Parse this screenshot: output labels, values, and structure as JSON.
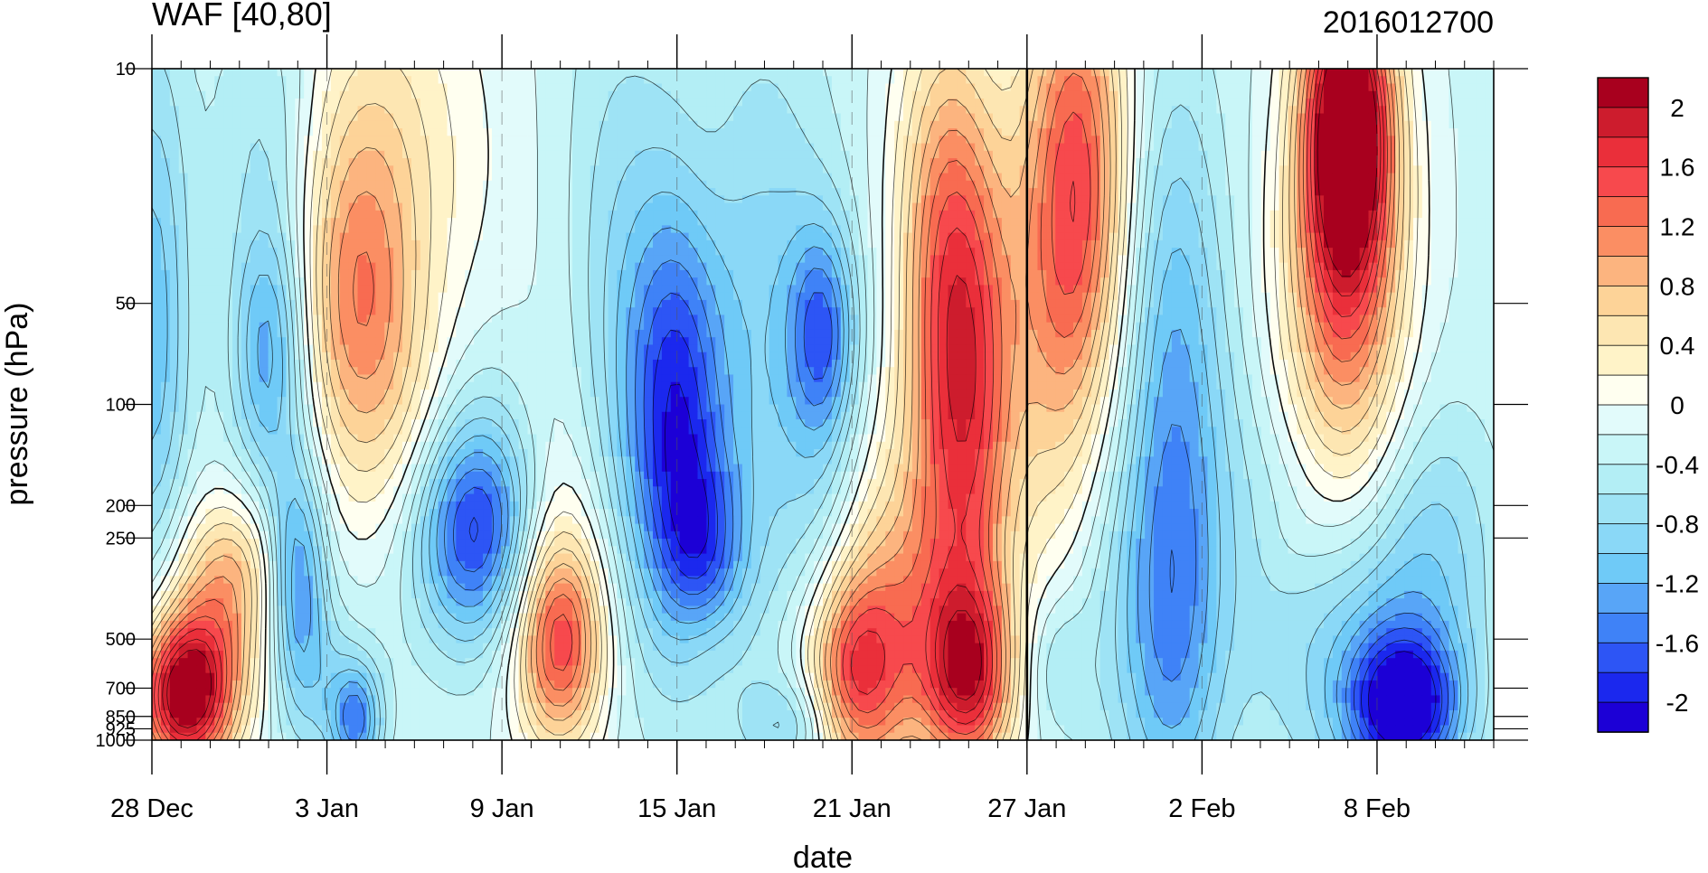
{
  "chart_data": {
    "type": "heatmap",
    "title": "WAF [40,80]",
    "title_right": "2016012700",
    "xlabel": "date",
    "ylabel": "pressure (hPa)",
    "x_tick_labels": [
      "28 Dec",
      "3 Jan",
      "9 Jan",
      "15 Jan",
      "21 Jan",
      "27 Jan",
      "2 Feb",
      "8 Feb"
    ],
    "x_tick_dates": [
      "2015-12-28",
      "2016-01-03",
      "2016-01-09",
      "2016-01-15",
      "2016-01-21",
      "2016-01-27",
      "2016-02-02",
      "2016-02-08"
    ],
    "x_range": [
      "2015-12-28",
      "2016-02-12"
    ],
    "y_scale": "log",
    "y_reversed": true,
    "y_range": [
      1000,
      10
    ],
    "y_tick_values": [
      10,
      50,
      100,
      200,
      250,
      500,
      700,
      850,
      925,
      1000
    ],
    "y_tick_labels": [
      "10",
      "50",
      "100",
      "200",
      "250",
      "500",
      "700",
      "850",
      "925",
      "1000"
    ],
    "marker_date": "2016-01-27",
    "colorbar": {
      "levels": [
        -2.2,
        -2.0,
        -1.8,
        -1.6,
        -1.4,
        -1.2,
        -1.0,
        -0.8,
        -0.6,
        -0.4,
        -0.2,
        0,
        0.2,
        0.4,
        0.6,
        0.8,
        1.0,
        1.2,
        1.4,
        1.6,
        1.8,
        2.0,
        2.2
      ],
      "colors": [
        "#1c00d6",
        "#1b28ee",
        "#2d55f5",
        "#3f82f7",
        "#58a5f7",
        "#6fcaf7",
        "#8ad8f7",
        "#9ee3f5",
        "#b3eef5",
        "#c9f6f8",
        "#e2fbfb",
        "#fffff0",
        "#fff3c8",
        "#fde6b2",
        "#fdd398",
        "#fcb47f",
        "#fb8e63",
        "#f86b51",
        "#f7494d",
        "#ea2f3a",
        "#cd1c2d",
        "#a8001e"
      ],
      "tick_labels": [
        "2",
        "1.6",
        "1.2",
        "0.8",
        "0.4",
        "0",
        "-0.4",
        "-0.8",
        "-1.2",
        "-1.6",
        "-2"
      ],
      "tick_values": [
        2,
        1.6,
        1.2,
        0.8,
        0.4,
        0,
        -0.4,
        -0.8,
        -1.2,
        -1.6,
        -2
      ]
    },
    "field_features": [
      {
        "date": "2015-12-29",
        "p": 750,
        "v": 2.1,
        "dx": 1.1,
        "dlog": 0.16
      },
      {
        "date": "2015-12-30",
        "p": 500,
        "v": 1.1,
        "dx": 1.4,
        "dlog": 0.25
      },
      {
        "date": "2015-12-31",
        "p": 300,
        "v": 0.5,
        "dx": 1.0,
        "dlog": 0.15
      },
      {
        "date": "2015-12-28",
        "p": 60,
        "v": -0.9,
        "dx": 0.9,
        "dlog": 0.6
      },
      {
        "date": "2016-01-01",
        "p": 70,
        "v": -1.1,
        "dx": 0.9,
        "dlog": 0.28
      },
      {
        "date": "2016-01-02",
        "p": 330,
        "v": -1.2,
        "dx": 0.7,
        "dlog": 0.25
      },
      {
        "date": "2016-01-01",
        "p": 15,
        "v": -0.4,
        "dx": 1.3,
        "dlog": 0.3
      },
      {
        "date": "2016-01-03",
        "p": 700,
        "v": -0.4,
        "dx": 1.2,
        "dlog": 0.18
      },
      {
        "date": "2016-01-04",
        "p": 880,
        "v": -1.1,
        "dx": 0.6,
        "dlog": 0.12
      },
      {
        "date": "2016-01-04",
        "p": 55,
        "v": 1.0,
        "dx": 1.3,
        "dlog": 0.38
      },
      {
        "date": "2016-01-05",
        "p": 20,
        "v": 0.7,
        "dx": 2.2,
        "dlog": 0.5
      },
      {
        "date": "2016-01-06",
        "p": 130,
        "v": 0.4,
        "dx": 1.2,
        "dlog": 0.3
      },
      {
        "date": "2016-01-08",
        "p": 240,
        "v": -1.5,
        "dx": 1.5,
        "dlog": 0.23
      },
      {
        "date": "2016-01-08",
        "p": 140,
        "v": -0.3,
        "dx": 1.8,
        "dlog": 0.35
      },
      {
        "date": "2016-01-09",
        "p": 40,
        "v": 0.08,
        "dx": 1.6,
        "dlog": 0.8
      },
      {
        "date": "2016-01-11",
        "p": 520,
        "v": 1.5,
        "dx": 1.1,
        "dlog": 0.22
      },
      {
        "date": "2016-01-11",
        "p": 300,
        "v": 0.5,
        "dx": 1.2,
        "dlog": 0.35
      },
      {
        "date": "2016-01-11",
        "p": 80,
        "v": 0.1,
        "dx": 1.0,
        "dlog": 0.5
      },
      {
        "date": "2016-01-13",
        "p": 50,
        "v": -0.5,
        "dx": 1.5,
        "dlog": 0.7
      },
      {
        "date": "2016-01-15",
        "p": 110,
        "v": -1.5,
        "dx": 1.2,
        "dlog": 0.45
      },
      {
        "date": "2016-01-16",
        "p": 270,
        "v": -0.8,
        "dx": 1.0,
        "dlog": 0.2
      },
      {
        "date": "2016-01-16",
        "p": 15,
        "v": 0.05,
        "dx": 0.6,
        "dlog": 0.3
      },
      {
        "date": "2016-01-16",
        "p": 520,
        "v": 0.15,
        "dx": 0.8,
        "dlog": 0.1
      },
      {
        "date": "2016-01-18",
        "p": 60,
        "v": -0.6,
        "dx": 1.5,
        "dlog": 0.7
      },
      {
        "date": "2016-01-20",
        "p": 60,
        "v": -1.0,
        "dx": 0.8,
        "dlog": 0.22
      },
      {
        "date": "2016-01-20",
        "p": 150,
        "v": -0.4,
        "dx": 1.0,
        "dlog": 0.5
      },
      {
        "date": "2016-01-19",
        "p": 900,
        "v": -0.6,
        "dx": 1.2,
        "dlog": 0.1
      },
      {
        "date": "2016-01-21",
        "p": 650,
        "v": 1.4,
        "dx": 1.2,
        "dlog": 0.22
      },
      {
        "date": "2016-01-22",
        "p": 500,
        "v": 0.6,
        "dx": 1.6,
        "dlog": 0.32
      },
      {
        "date": "2016-01-25",
        "p": 650,
        "v": 1.7,
        "dx": 1.1,
        "dlog": 0.2
      },
      {
        "date": "2016-01-25",
        "p": 90,
        "v": 1.6,
        "dx": 1.2,
        "dlog": 0.55
      },
      {
        "date": "2016-01-24",
        "p": 30,
        "v": 0.9,
        "dx": 1.2,
        "dlog": 0.5
      },
      {
        "date": "2016-01-23",
        "p": 300,
        "v": 0.5,
        "dx": 1.8,
        "dlog": 0.35
      },
      {
        "date": "2016-01-28",
        "p": 40,
        "v": 0.9,
        "dx": 1.2,
        "dlog": 0.6
      },
      {
        "date": "2016-01-29",
        "p": 20,
        "v": 1.2,
        "dx": 1.2,
        "dlog": 0.5
      },
      {
        "date": "2016-01-28",
        "p": 600,
        "v": -0.4,
        "dx": 0.8,
        "dlog": 0.15
      },
      {
        "date": "2016-01-30",
        "p": 400,
        "v": -0.3,
        "dx": 1.3,
        "dlog": 0.4
      },
      {
        "date": "2016-02-01",
        "p": 60,
        "v": -0.8,
        "dx": 1.2,
        "dlog": 0.55
      },
      {
        "date": "2016-02-01",
        "p": 500,
        "v": -0.9,
        "dx": 1.2,
        "dlog": 0.45
      },
      {
        "date": "2016-02-04",
        "p": 200,
        "v": -0.4,
        "dx": 2.0,
        "dlog": 0.5
      },
      {
        "date": "2016-02-05",
        "p": 260,
        "v": 0.1,
        "dx": 0.8,
        "dlog": 0.1
      },
      {
        "date": "2016-02-07",
        "p": 14,
        "v": 2.1,
        "dx": 1.0,
        "dlog": 0.3
      },
      {
        "date": "2016-02-07",
        "p": 30,
        "v": 1.4,
        "dx": 1.4,
        "dlog": 0.5
      },
      {
        "date": "2016-02-06",
        "p": 70,
        "v": 0.5,
        "dx": 1.8,
        "dlog": 0.4
      },
      {
        "date": "2016-02-09",
        "p": 800,
        "v": -1.6,
        "dx": 1.3,
        "dlog": 0.15
      },
      {
        "date": "2016-02-08",
        "p": 600,
        "v": -0.8,
        "dx": 2.0,
        "dlog": 0.3
      },
      {
        "date": "2016-02-10",
        "p": 250,
        "v": -0.5,
        "dx": 1.5,
        "dlog": 0.3
      }
    ]
  }
}
